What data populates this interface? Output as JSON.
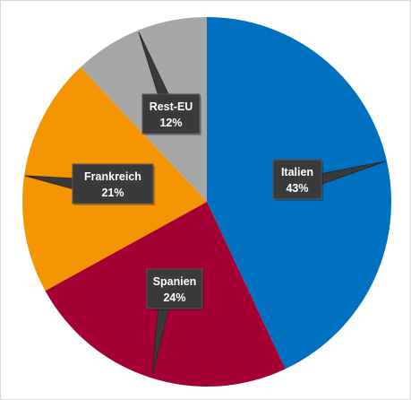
{
  "chart_data": {
    "type": "pie",
    "title": "",
    "slices": [
      {
        "label": "Italien",
        "value": 43,
        "display": "43%",
        "color": "#0070C0"
      },
      {
        "label": "Spanien",
        "value": 24,
        "display": "24%",
        "color": "#A50034"
      },
      {
        "label": "Frankreich",
        "value": 21,
        "display": "21%",
        "color": "#F39400"
      },
      {
        "label": "Rest-EU",
        "value": 12,
        "display": "12%",
        "color": "#A6A6A6"
      }
    ],
    "legend": "none",
    "label_style": "dark callouts with category name and percentage"
  }
}
